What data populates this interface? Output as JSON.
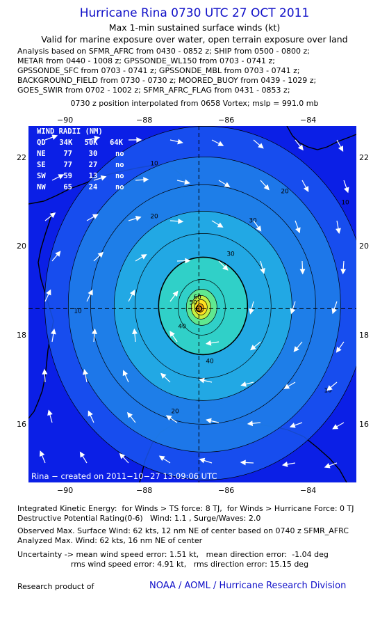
{
  "header": {
    "title": "Hurricane Rina 0730 UTC 27 OCT 2011",
    "line1": "Max 1-min sustained surface winds (kt)",
    "line2": "Valid for marine exposure over water, open terrain exposure over land",
    "analysis_lines": [
      "Analysis based on SFMR_AFRC from 0430 - 0852 z; SHIP from 0500 - 0800 z;",
      "METAR from 0440 - 1008 z; GPSSONDE_WL150 from 0703 - 0741 z;",
      "GPSSONDE_SFC from 0703 - 0741 z; GPSSONDE_MBL from 0703 - 0741 z;",
      "BACKGROUND_FIELD from 0730 - 0730 z; MOORED_BUOY from 0439 - 1029 z;",
      "GOES_SWIR from 0702 - 1002 z; SFMR_AFRC_FLAG from 0431 - 0853 z;"
    ],
    "position_line": "0730 z position interpolated from 0658 Vortex; mslp = 991.0 mb"
  },
  "map": {
    "lon_ticks": [
      "−90",
      "−88",
      "−86",
      "−84"
    ],
    "lat_ticks": [
      "22",
      "20",
      "18",
      "16"
    ],
    "lon_range": [
      -90.8,
      -83.2
    ],
    "lat_range": [
      14.8,
      22.8
    ],
    "center": {
      "lon": -86.85,
      "lat": 18.7
    },
    "wind_radii": {
      "title": "WIND RADII (NM)",
      "header": [
        "QD",
        "34K",
        "50K",
        "64K"
      ],
      "rows": [
        [
          "NE",
          "77",
          "30",
          "no"
        ],
        [
          "SE",
          "77",
          "27",
          "no"
        ],
        [
          "SW",
          "59",
          "13",
          "no"
        ],
        [
          "NW",
          "65",
          "24",
          "no"
        ]
      ]
    },
    "contour_labels": [
      "10",
      "20",
      "30",
      "40",
      "50",
      "60"
    ],
    "created": "Rina − created on 2011−10−27 13:09:06 UTC",
    "colors": {
      "ocean": "#0b1fe6",
      "land": "#1030f0",
      "band1": "#1a56ee",
      "band2": "#1e7fe8",
      "band3": "#22a8e4",
      "band4": "#30d0c8",
      "band5": "#60e890",
      "band6": "#c8f040",
      "band7": "#ffe020",
      "band8": "#f0a010"
    }
  },
  "footer": {
    "lines": [
      "Integrated Kinetic Energy:  for Winds > TS force: 8 TJ,  for Winds > Hurricane Force: 0 TJ",
      "Destructive Potential Rating(0-6)   Wind: 1.1 , Surge/Waves: 2.0",
      "",
      "Observed Max. Surface Wind: 62 kts, 12 nm NE of center based on 0740 z SFMR_AFRC",
      "Analyzed Max. Wind: 62 kts, 16 nm NE of center",
      "",
      "Uncertainty -> mean wind speed error: 1.51 kt,   mean direction error:  -1.04 deg",
      "                      rms wind speed error: 4.91 kt,   rms direction error: 15.15 deg"
    ],
    "credit_left": "Research product of",
    "credit_right": "NOAA / AOML / Hurricane Research Division"
  }
}
